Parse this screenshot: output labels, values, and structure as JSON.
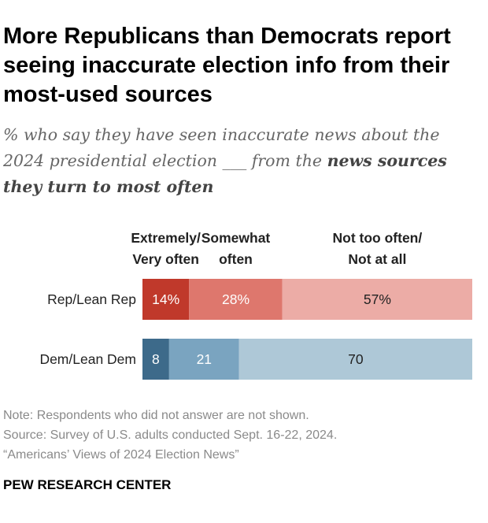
{
  "header": {
    "title": "More Republicans than Democrats report seeing inaccurate election info from their most-used sources",
    "subtitle_part1": "% who say they have seen inaccurate news about the 2024 presidential election ___ from the ",
    "subtitle_bold": "news sources they turn to most often"
  },
  "chart_data": {
    "type": "bar",
    "orientation": "horizontal",
    "stacked": true,
    "categories": [
      "Rep/Lean Rep",
      "Dem/Lean Dem"
    ],
    "series": [
      {
        "name": "Extremely/ Very often",
        "name_lines": [
          "Extremely/",
          "Very often"
        ],
        "values": [
          14,
          8
        ],
        "labels": [
          "14%",
          "8"
        ],
        "colors": [
          "#c0392b",
          "#3d6a8a"
        ]
      },
      {
        "name": "Somewhat often",
        "name_lines": [
          "Somewhat",
          "often"
        ],
        "values": [
          28,
          21
        ],
        "labels": [
          "28%",
          "21"
        ],
        "colors": [
          "#de776d",
          "#7aa4c0"
        ]
      },
      {
        "name": "Not too often/ Not at all",
        "name_lines": [
          "Not too often/",
          "Not at all"
        ],
        "values": [
          57,
          70
        ],
        "labels": [
          "57%",
          "70"
        ],
        "colors": [
          "#ecaca6",
          "#aec8d7"
        ]
      }
    ],
    "label_colors": [
      "#ffffff",
      "#ffffff",
      "#222222"
    ],
    "xlim": [
      0,
      100
    ]
  },
  "notes": {
    "note": "Note: Respondents who did not answer are not shown.",
    "source": "Source: Survey of U.S. adults conducted Sept. 16-22, 2024.",
    "report": "“Americans’ Views of 2024 Election News”"
  },
  "footer": {
    "brand": "PEW RESEARCH CENTER"
  }
}
